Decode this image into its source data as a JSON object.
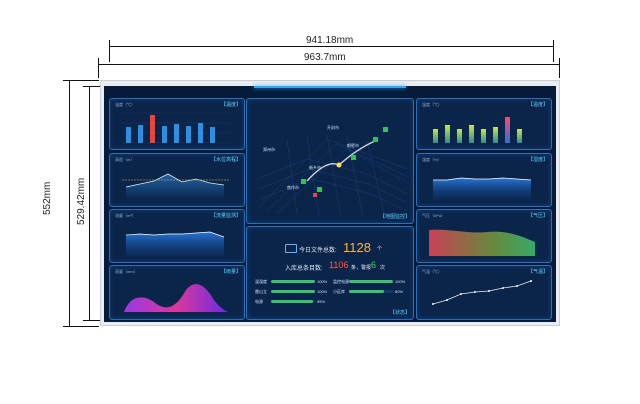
{
  "dimensions": {
    "inner_width": "941.18mm",
    "outer_width": "963.7mm",
    "outer_height": "552mm",
    "inner_height": "529.42mm"
  },
  "colors": {
    "background": "#061a3a",
    "panel_border": "#2d6fb0",
    "accent_cyan": "#5fd4ff",
    "stat_orange": "#ffb43a",
    "bar_green": "#3cc36b"
  },
  "map_panel": {
    "title": "【地图监控】",
    "labels": [
      "郑州市",
      "开封市",
      "新乡市",
      "鹤壁市",
      "焦作市"
    ]
  },
  "stats": {
    "today_label": "今日文件总数:",
    "today_value": "1128",
    "today_unit": "个",
    "storage_label": "入库总条目数:",
    "storage_value": "1106",
    "storage_unit": "条，警报",
    "alarm_value": "6",
    "alarm_unit": "次",
    "panel_title": "【状态】",
    "progress": [
      {
        "label": "温湿度",
        "value": 1.0,
        "text": "100%"
      },
      {
        "label": "雷山立",
        "value": 1.0,
        "text": "100%"
      },
      {
        "label": "电源",
        "value": 0.95,
        "text": "95%"
      },
      {
        "label": "监控电源",
        "value": 1.0,
        "text": "100%"
      },
      {
        "label": "小区库",
        "value": 0.8,
        "text": "80%"
      }
    ]
  },
  "left_panels": [
    {
      "title": "【温度】",
      "unit": "温度（℃）"
    },
    {
      "title": "【水位高程】",
      "unit": "高程（m）"
    },
    {
      "title": "【流量监测】",
      "unit": "流量（m³）"
    },
    {
      "title": "【雨量】",
      "unit": "雨量（mm）"
    }
  ],
  "right_panels": [
    {
      "title": "【温度】",
      "unit": "温度（℃）"
    },
    {
      "title": "【湿度】",
      "unit": "湿度（%）"
    },
    {
      "title": "【气压】",
      "unit": "气压（hPa）"
    },
    {
      "title": "【气温】",
      "unit": "气温（℃）"
    }
  ]
}
